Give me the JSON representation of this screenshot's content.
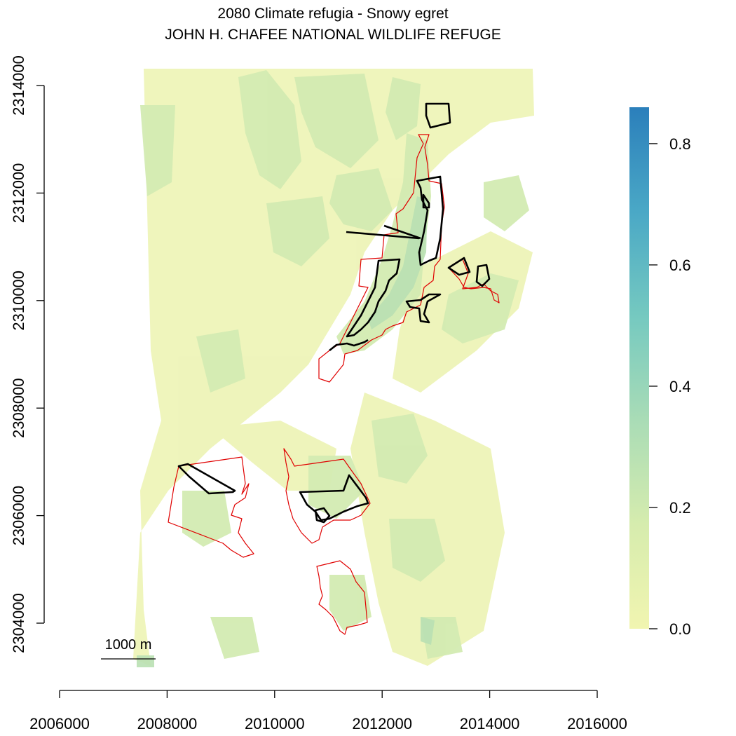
{
  "title": {
    "line1": "2080 Climate refugia - Snowy egret",
    "line2": "JOHN H. CHAFEE NATIONAL WILDLIFE REFUGE"
  },
  "x_axis": {
    "ticks": [
      {
        "value": 2006000,
        "label": "2006000"
      },
      {
        "value": 2008000,
        "label": "2008000"
      },
      {
        "value": 2010000,
        "label": "2010000"
      },
      {
        "value": 2012000,
        "label": "2012000"
      },
      {
        "value": 2014000,
        "label": "2014000"
      },
      {
        "value": 2016000,
        "label": "2016000"
      }
    ]
  },
  "y_axis": {
    "ticks": [
      {
        "value": 2304000,
        "label": "2304000"
      },
      {
        "value": 2306000,
        "label": "2306000"
      },
      {
        "value": 2308000,
        "label": "2308000"
      },
      {
        "value": 2310000,
        "label": "2310000"
      },
      {
        "value": 2312000,
        "label": "2312000"
      },
      {
        "value": 2314000,
        "label": "2314000"
      }
    ]
  },
  "colorbar": {
    "range": [
      0,
      0.86
    ],
    "colors": [
      "#f1f5b0",
      "#d6ecae",
      "#a9dcb6",
      "#75c9c0",
      "#4aa8c6",
      "#2b7fbb"
    ],
    "ticks": [
      {
        "value": 0.0,
        "label": "0.0"
      },
      {
        "value": 0.2,
        "label": "0.2"
      },
      {
        "value": 0.4,
        "label": "0.4"
      },
      {
        "value": 0.6,
        "label": "0.6"
      },
      {
        "value": 0.8,
        "label": "0.8"
      }
    ]
  },
  "scale_bar": {
    "label": "1000 m"
  },
  "colors": {
    "refuge_boundary": "#e00000",
    "acquisition_boundary": "#000000",
    "raster_low": "#eef4b8",
    "raster_mid": "#d3ebb2"
  }
}
